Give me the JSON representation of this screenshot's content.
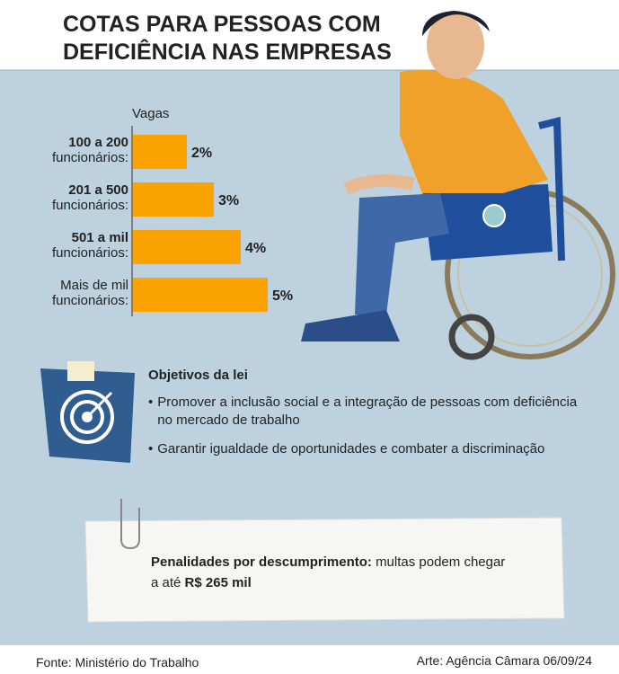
{
  "header": {
    "title": [
      "COTAS PARA PESSOAS COM",
      "DEFICIÊNCIA NAS EMPRESAS"
    ]
  },
  "chart_data": {
    "type": "bar",
    "orientation": "horizontal",
    "axis_label": "Vagas",
    "categories": [
      [
        "100 a 200",
        "funcionários:"
      ],
      [
        "201 a 500",
        "funcionários:"
      ],
      [
        "501 a mil",
        "funcionários:"
      ],
      [
        "Mais de mil",
        "funcionários:"
      ]
    ],
    "values": [
      2,
      3,
      4,
      5
    ],
    "value_labels": [
      "2%",
      "3%",
      "4%",
      "5%"
    ],
    "color": "#f9a200"
  },
  "objectives": {
    "title": "Objetivos da lei",
    "items": [
      "Promover a inclusão social e a integração de pessoas com deficiência no mercado de trabalho",
      "Garantir igualdade de oportunidades e combater a discriminação"
    ]
  },
  "penalty": {
    "label": "Penalidades por descumprimento:",
    "text": "multas podem chegar a até",
    "amount": "R$ 265 mil"
  },
  "footer": {
    "source": "Fonte: Ministério do Trabalho",
    "credit": "Arte: Agência Câmara 06/09/24"
  }
}
